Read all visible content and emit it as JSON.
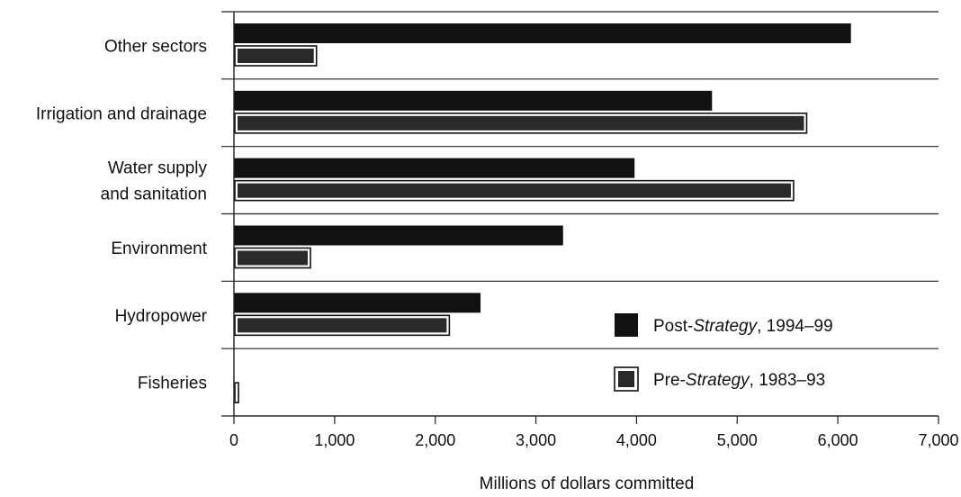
{
  "chart_data": {
    "type": "bar",
    "orientation": "horizontal",
    "categories": [
      [
        "Other sectors"
      ],
      [
        "Irrigation and drainage"
      ],
      [
        "Water supply",
        "and sanitation"
      ],
      [
        "Environment"
      ],
      [
        "Hydropower"
      ],
      [
        "Fisheries"
      ]
    ],
    "series": [
      {
        "name_prefix": "Post-",
        "name_emph": "Strategy",
        "name_suffix": ", 1994–99",
        "color": "#111111",
        "style": "solid",
        "values": [
          6130,
          4750,
          3980,
          3270,
          2450,
          0
        ]
      },
      {
        "name_prefix": "Pre-",
        "name_emph": "Strategy",
        "name_suffix": ", 1983–93",
        "color": "#2a2a2a",
        "style": "outlined",
        "values": [
          820,
          5690,
          5560,
          760,
          2140,
          45
        ]
      }
    ],
    "xlabel": "Millions of dollars committed",
    "xlim": [
      0,
      7000
    ],
    "xticks": [
      0,
      1000,
      2000,
      3000,
      4000,
      5000,
      6000,
      7000
    ],
    "xtick_labels": [
      "0",
      "1,000",
      "2,000",
      "3,000",
      "4,000",
      "5,000",
      "6,000",
      "7,000"
    ],
    "legend_position": "lower-right",
    "grid": false
  }
}
